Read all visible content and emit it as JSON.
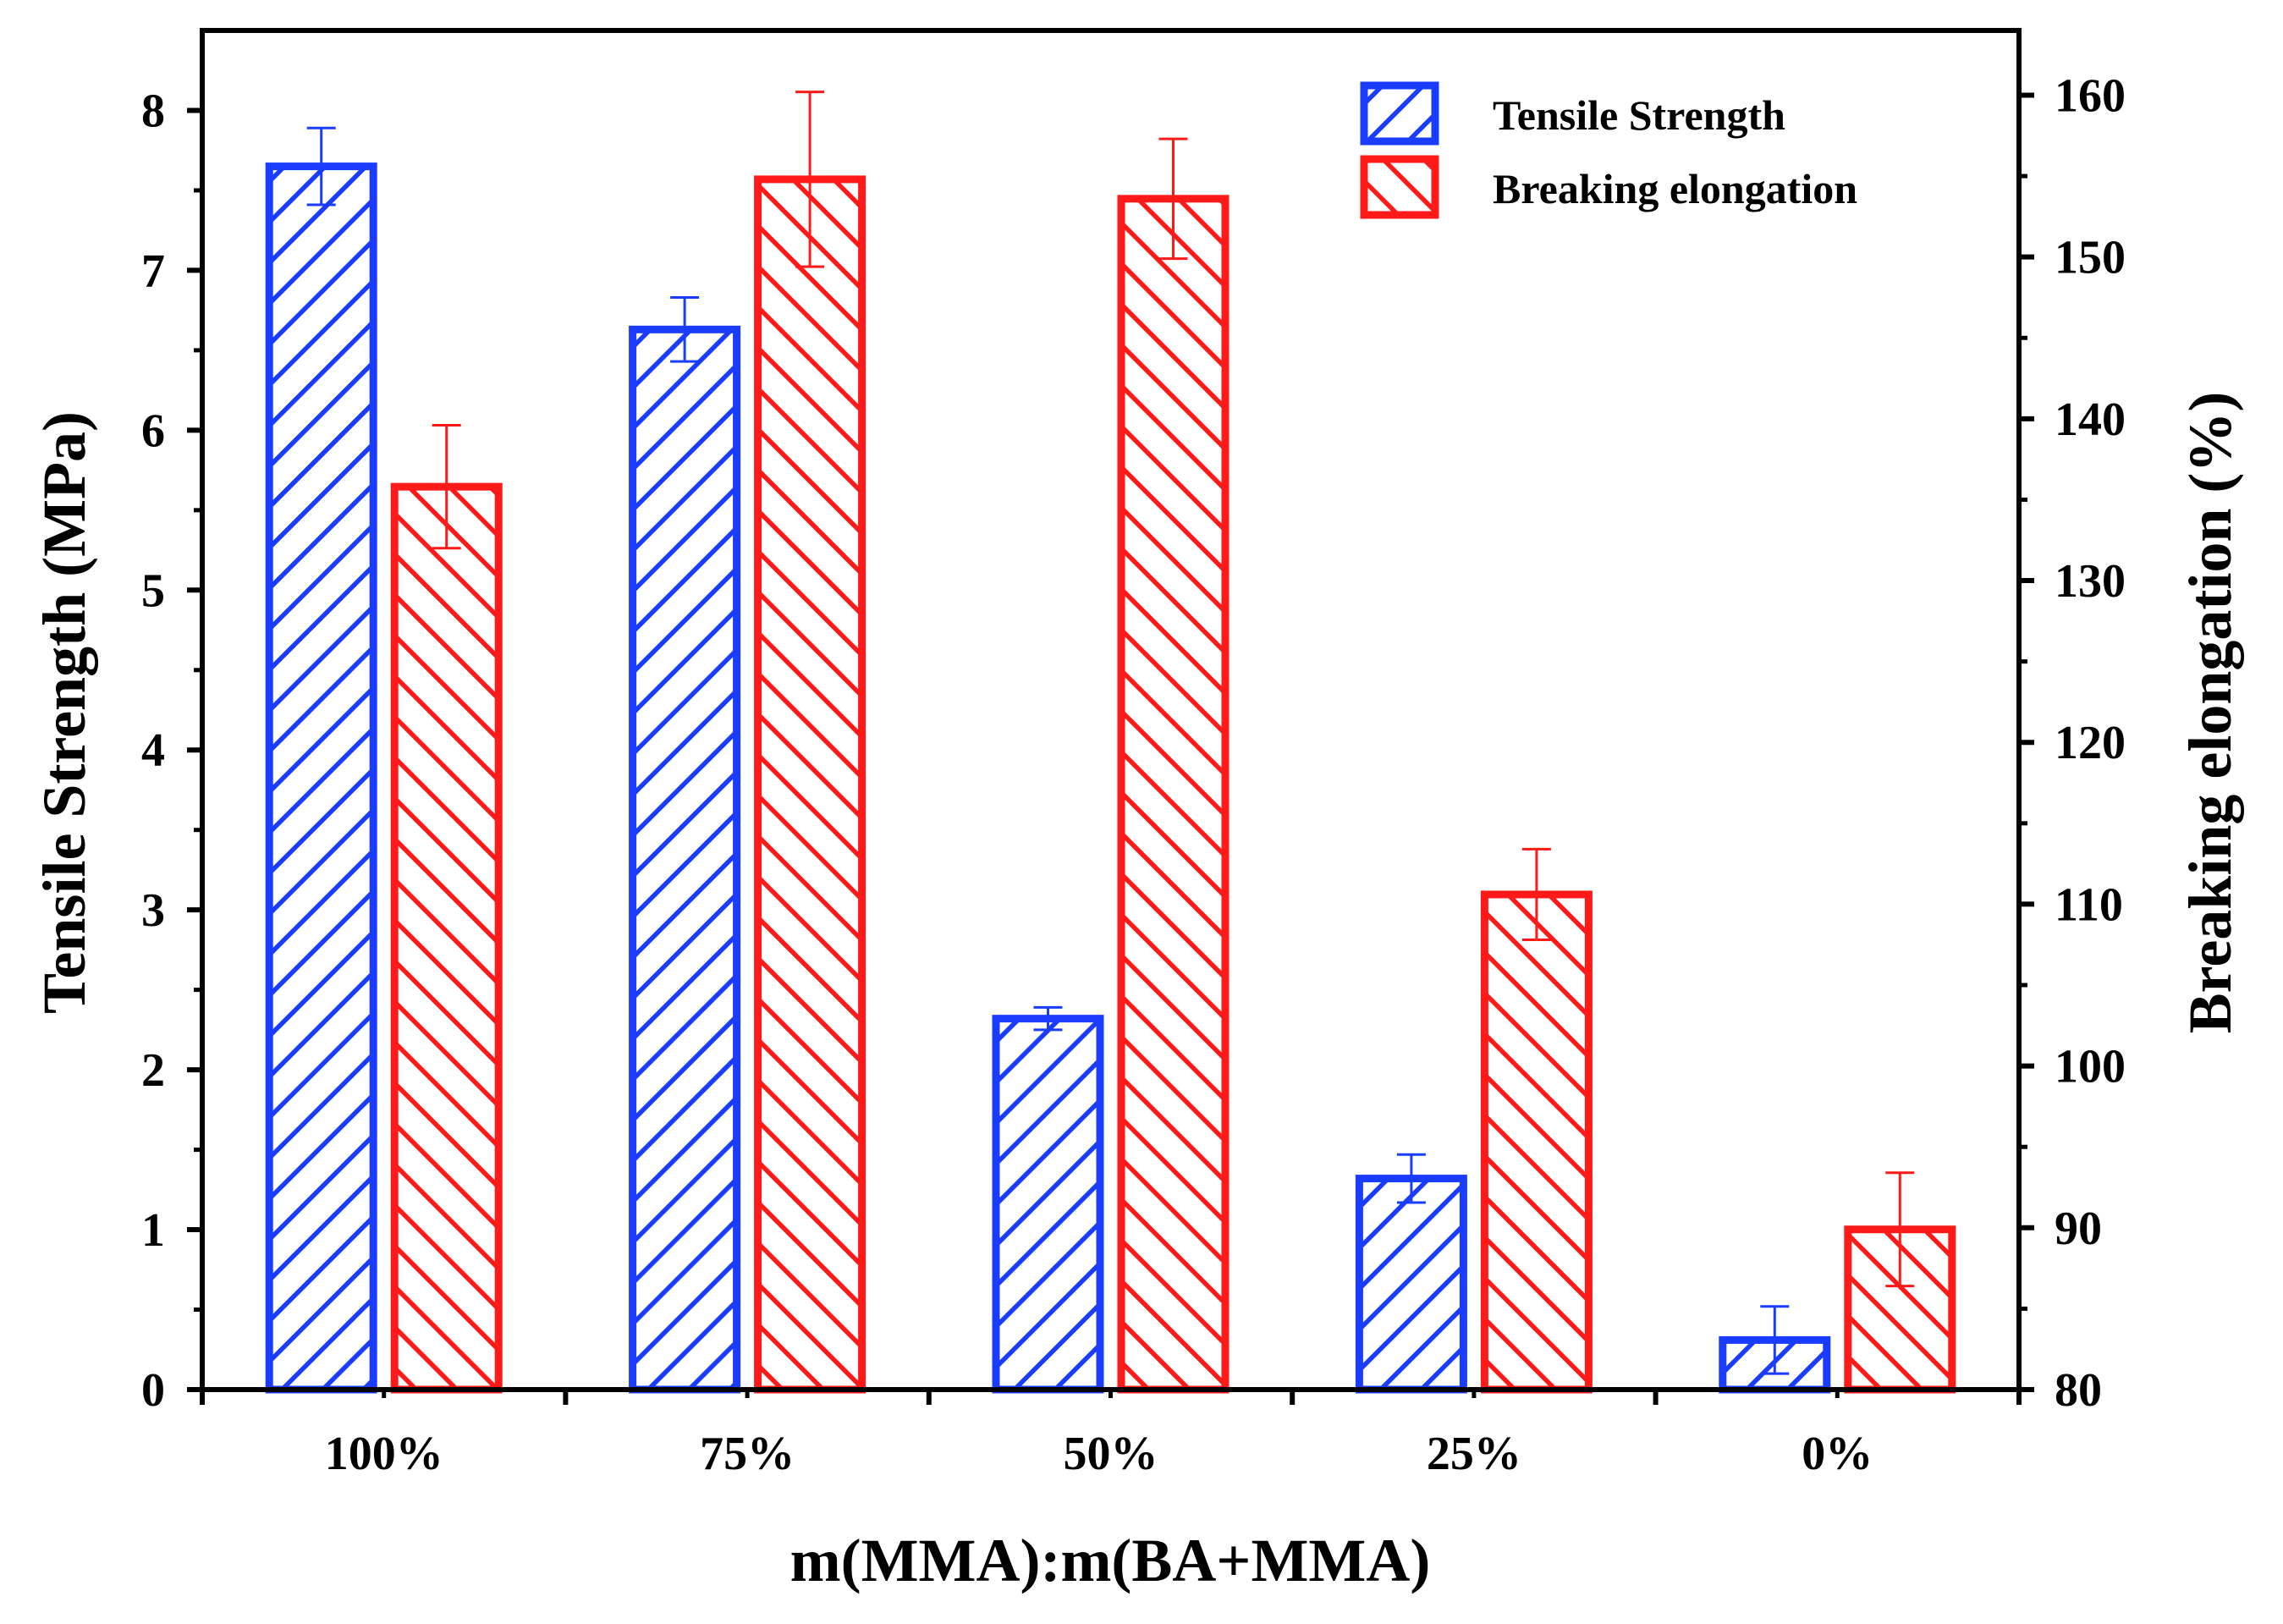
{
  "chart_data": {
    "type": "bar",
    "categories": [
      "100%",
      "75%",
      "50%",
      "25%",
      "0%"
    ],
    "xlabel": "m(MMA):m(BA+MMA)",
    "series": [
      {
        "name": "Tensile Strength",
        "axis": "left",
        "color": "#1a3cff",
        "values": [
          7.65,
          6.63,
          2.32,
          1.32,
          0.31
        ],
        "errors": [
          0.24,
          0.2,
          0.07,
          0.15,
          0.21
        ]
      },
      {
        "name": "Breaking elongation",
        "axis": "right",
        "color": "#ff1a1a",
        "values": [
          135.8,
          154.8,
          153.6,
          110.6,
          89.9
        ],
        "errors": [
          3.8,
          5.4,
          3.7,
          2.8,
          3.5
        ]
      }
    ],
    "left_axis": {
      "label": "Tensile Strength (MPa)",
      "ylim": [
        0,
        8.5
      ],
      "ticks": [
        0,
        1,
        2,
        3,
        4,
        5,
        6,
        7,
        8
      ]
    },
    "right_axis": {
      "label": "Breaking elongation (%)",
      "ylim": [
        80,
        164
      ],
      "ticks": [
        80,
        90,
        100,
        110,
        120,
        130,
        140,
        150,
        160
      ]
    },
    "legend": [
      "Tensile Strength",
      "Breaking elongation"
    ],
    "legend_position": "top-right"
  }
}
